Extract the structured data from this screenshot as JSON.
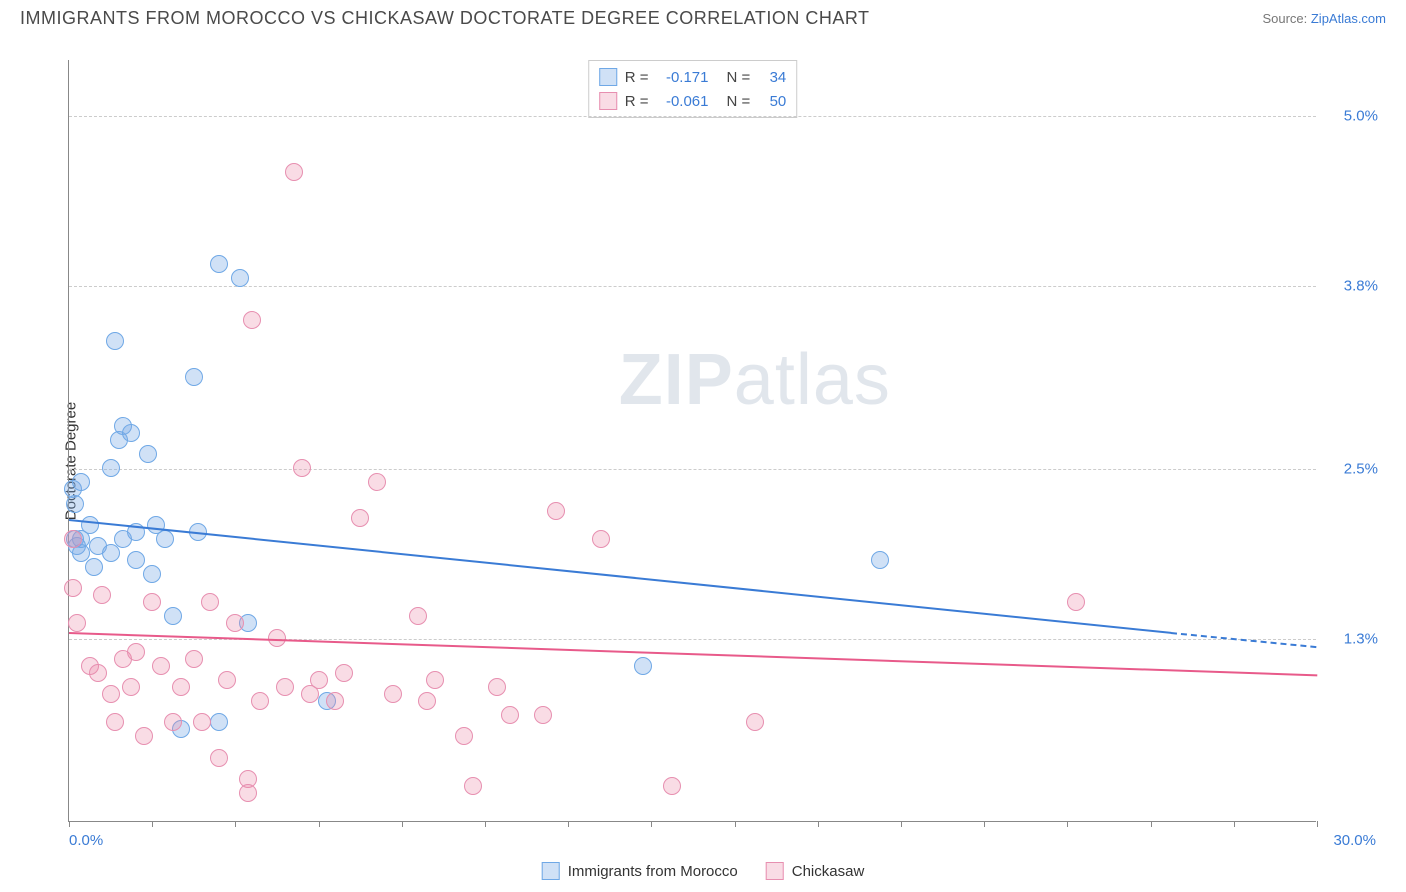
{
  "header": {
    "title": "IMMIGRANTS FROM MOROCCO VS CHICKASAW DOCTORATE DEGREE CORRELATION CHART",
    "source_prefix": "Source: ",
    "source_link": "ZipAtlas.com"
  },
  "chart": {
    "type": "scatter",
    "ylabel": "Doctorate Degree",
    "xlim": [
      0,
      30
    ],
    "ylim": [
      0,
      5.4
    ],
    "x_min_label": "0.0%",
    "x_max_label": "30.0%",
    "x_label_color": "#3a7bd5",
    "xtick_positions": [
      0,
      2,
      4,
      6,
      8,
      10,
      12,
      14,
      16,
      18,
      20,
      22,
      24,
      26,
      28,
      30
    ],
    "y_ticks": [
      {
        "v": 5.0,
        "label": "5.0%"
      },
      {
        "v": 3.8,
        "label": "3.8%"
      },
      {
        "v": 2.5,
        "label": "2.5%"
      },
      {
        "v": 1.3,
        "label": "1.3%"
      }
    ],
    "y_tick_color": "#3a7bd5",
    "grid_color": "#cccccc",
    "background_color": "#ffffff",
    "watermark": {
      "bold": "ZIP",
      "rest": "atlas"
    },
    "marker_radius": 9,
    "marker_stroke_width": 1.5,
    "series": [
      {
        "name": "Immigrants from Morocco",
        "color_fill": "rgba(120,170,230,0.35)",
        "color_stroke": "#6fa8e6",
        "line_color": "#3a7bd5",
        "r": "-0.171",
        "n": "34",
        "regression": {
          "x1": 0,
          "y1": 2.15,
          "x2": 26.5,
          "y2": 1.35,
          "dash_to_x": 30,
          "dash_to_y": 1.25
        },
        "points": [
          [
            0.1,
            2.35
          ],
          [
            0.15,
            2.25
          ],
          [
            0.15,
            2.0
          ],
          [
            0.2,
            1.95
          ],
          [
            0.3,
            2.4
          ],
          [
            0.3,
            1.9
          ],
          [
            0.3,
            2.0
          ],
          [
            0.5,
            2.1
          ],
          [
            0.6,
            1.8
          ],
          [
            0.7,
            1.95
          ],
          [
            1.0,
            2.5
          ],
          [
            1.0,
            1.9
          ],
          [
            1.2,
            2.7
          ],
          [
            1.3,
            2.0
          ],
          [
            1.3,
            2.8
          ],
          [
            1.5,
            2.75
          ],
          [
            1.6,
            1.85
          ],
          [
            1.6,
            2.05
          ],
          [
            1.9,
            2.6
          ],
          [
            2.0,
            1.75
          ],
          [
            2.1,
            2.1
          ],
          [
            2.3,
            2.0
          ],
          [
            2.5,
            1.45
          ],
          [
            2.7,
            0.65
          ],
          [
            3.0,
            3.15
          ],
          [
            3.1,
            2.05
          ],
          [
            3.6,
            3.95
          ],
          [
            3.6,
            0.7
          ],
          [
            4.1,
            3.85
          ],
          [
            4.3,
            1.4
          ],
          [
            6.2,
            0.85
          ],
          [
            1.1,
            3.4
          ],
          [
            13.8,
            1.1
          ],
          [
            19.5,
            1.85
          ]
        ]
      },
      {
        "name": "Chickasaw",
        "color_fill": "rgba(235,140,170,0.30)",
        "color_stroke": "#e78fb0",
        "line_color": "#e85a8a",
        "r": "-0.061",
        "n": "50",
        "regression": {
          "x1": 0,
          "y1": 1.35,
          "x2": 30,
          "y2": 1.05
        },
        "points": [
          [
            0.1,
            2.0
          ],
          [
            0.1,
            1.65
          ],
          [
            0.2,
            1.4
          ],
          [
            0.5,
            1.1
          ],
          [
            0.7,
            1.05
          ],
          [
            0.8,
            1.6
          ],
          [
            1.0,
            0.9
          ],
          [
            1.1,
            0.7
          ],
          [
            1.3,
            1.15
          ],
          [
            1.5,
            0.95
          ],
          [
            1.6,
            1.2
          ],
          [
            1.8,
            0.6
          ],
          [
            2.0,
            1.55
          ],
          [
            2.2,
            1.1
          ],
          [
            2.5,
            0.7
          ],
          [
            2.7,
            0.95
          ],
          [
            3.0,
            1.15
          ],
          [
            3.2,
            0.7
          ],
          [
            3.4,
            1.55
          ],
          [
            3.6,
            0.45
          ],
          [
            3.8,
            1.0
          ],
          [
            4.0,
            1.4
          ],
          [
            4.3,
            0.3
          ],
          [
            4.3,
            0.2
          ],
          [
            4.4,
            3.55
          ],
          [
            4.6,
            0.85
          ],
          [
            5.0,
            1.3
          ],
          [
            5.2,
            0.95
          ],
          [
            5.6,
            2.5
          ],
          [
            5.8,
            0.9
          ],
          [
            6.0,
            1.0
          ],
          [
            6.4,
            0.85
          ],
          [
            6.6,
            1.05
          ],
          [
            7.0,
            2.15
          ],
          [
            7.4,
            2.4
          ],
          [
            7.8,
            0.9
          ],
          [
            8.4,
            1.45
          ],
          [
            8.6,
            0.85
          ],
          [
            8.8,
            1.0
          ],
          [
            9.5,
            0.6
          ],
          [
            9.7,
            0.25
          ],
          [
            10.3,
            0.95
          ],
          [
            10.6,
            0.75
          ],
          [
            11.4,
            0.75
          ],
          [
            11.7,
            2.2
          ],
          [
            12.8,
            2.0
          ],
          [
            14.5,
            0.25
          ],
          [
            16.5,
            0.7
          ],
          [
            24.2,
            1.55
          ],
          [
            5.4,
            4.6
          ]
        ]
      }
    ],
    "stat_legend_labels": {
      "r": "R =",
      "n": "N ="
    },
    "legend_swatch_border": "#888"
  }
}
